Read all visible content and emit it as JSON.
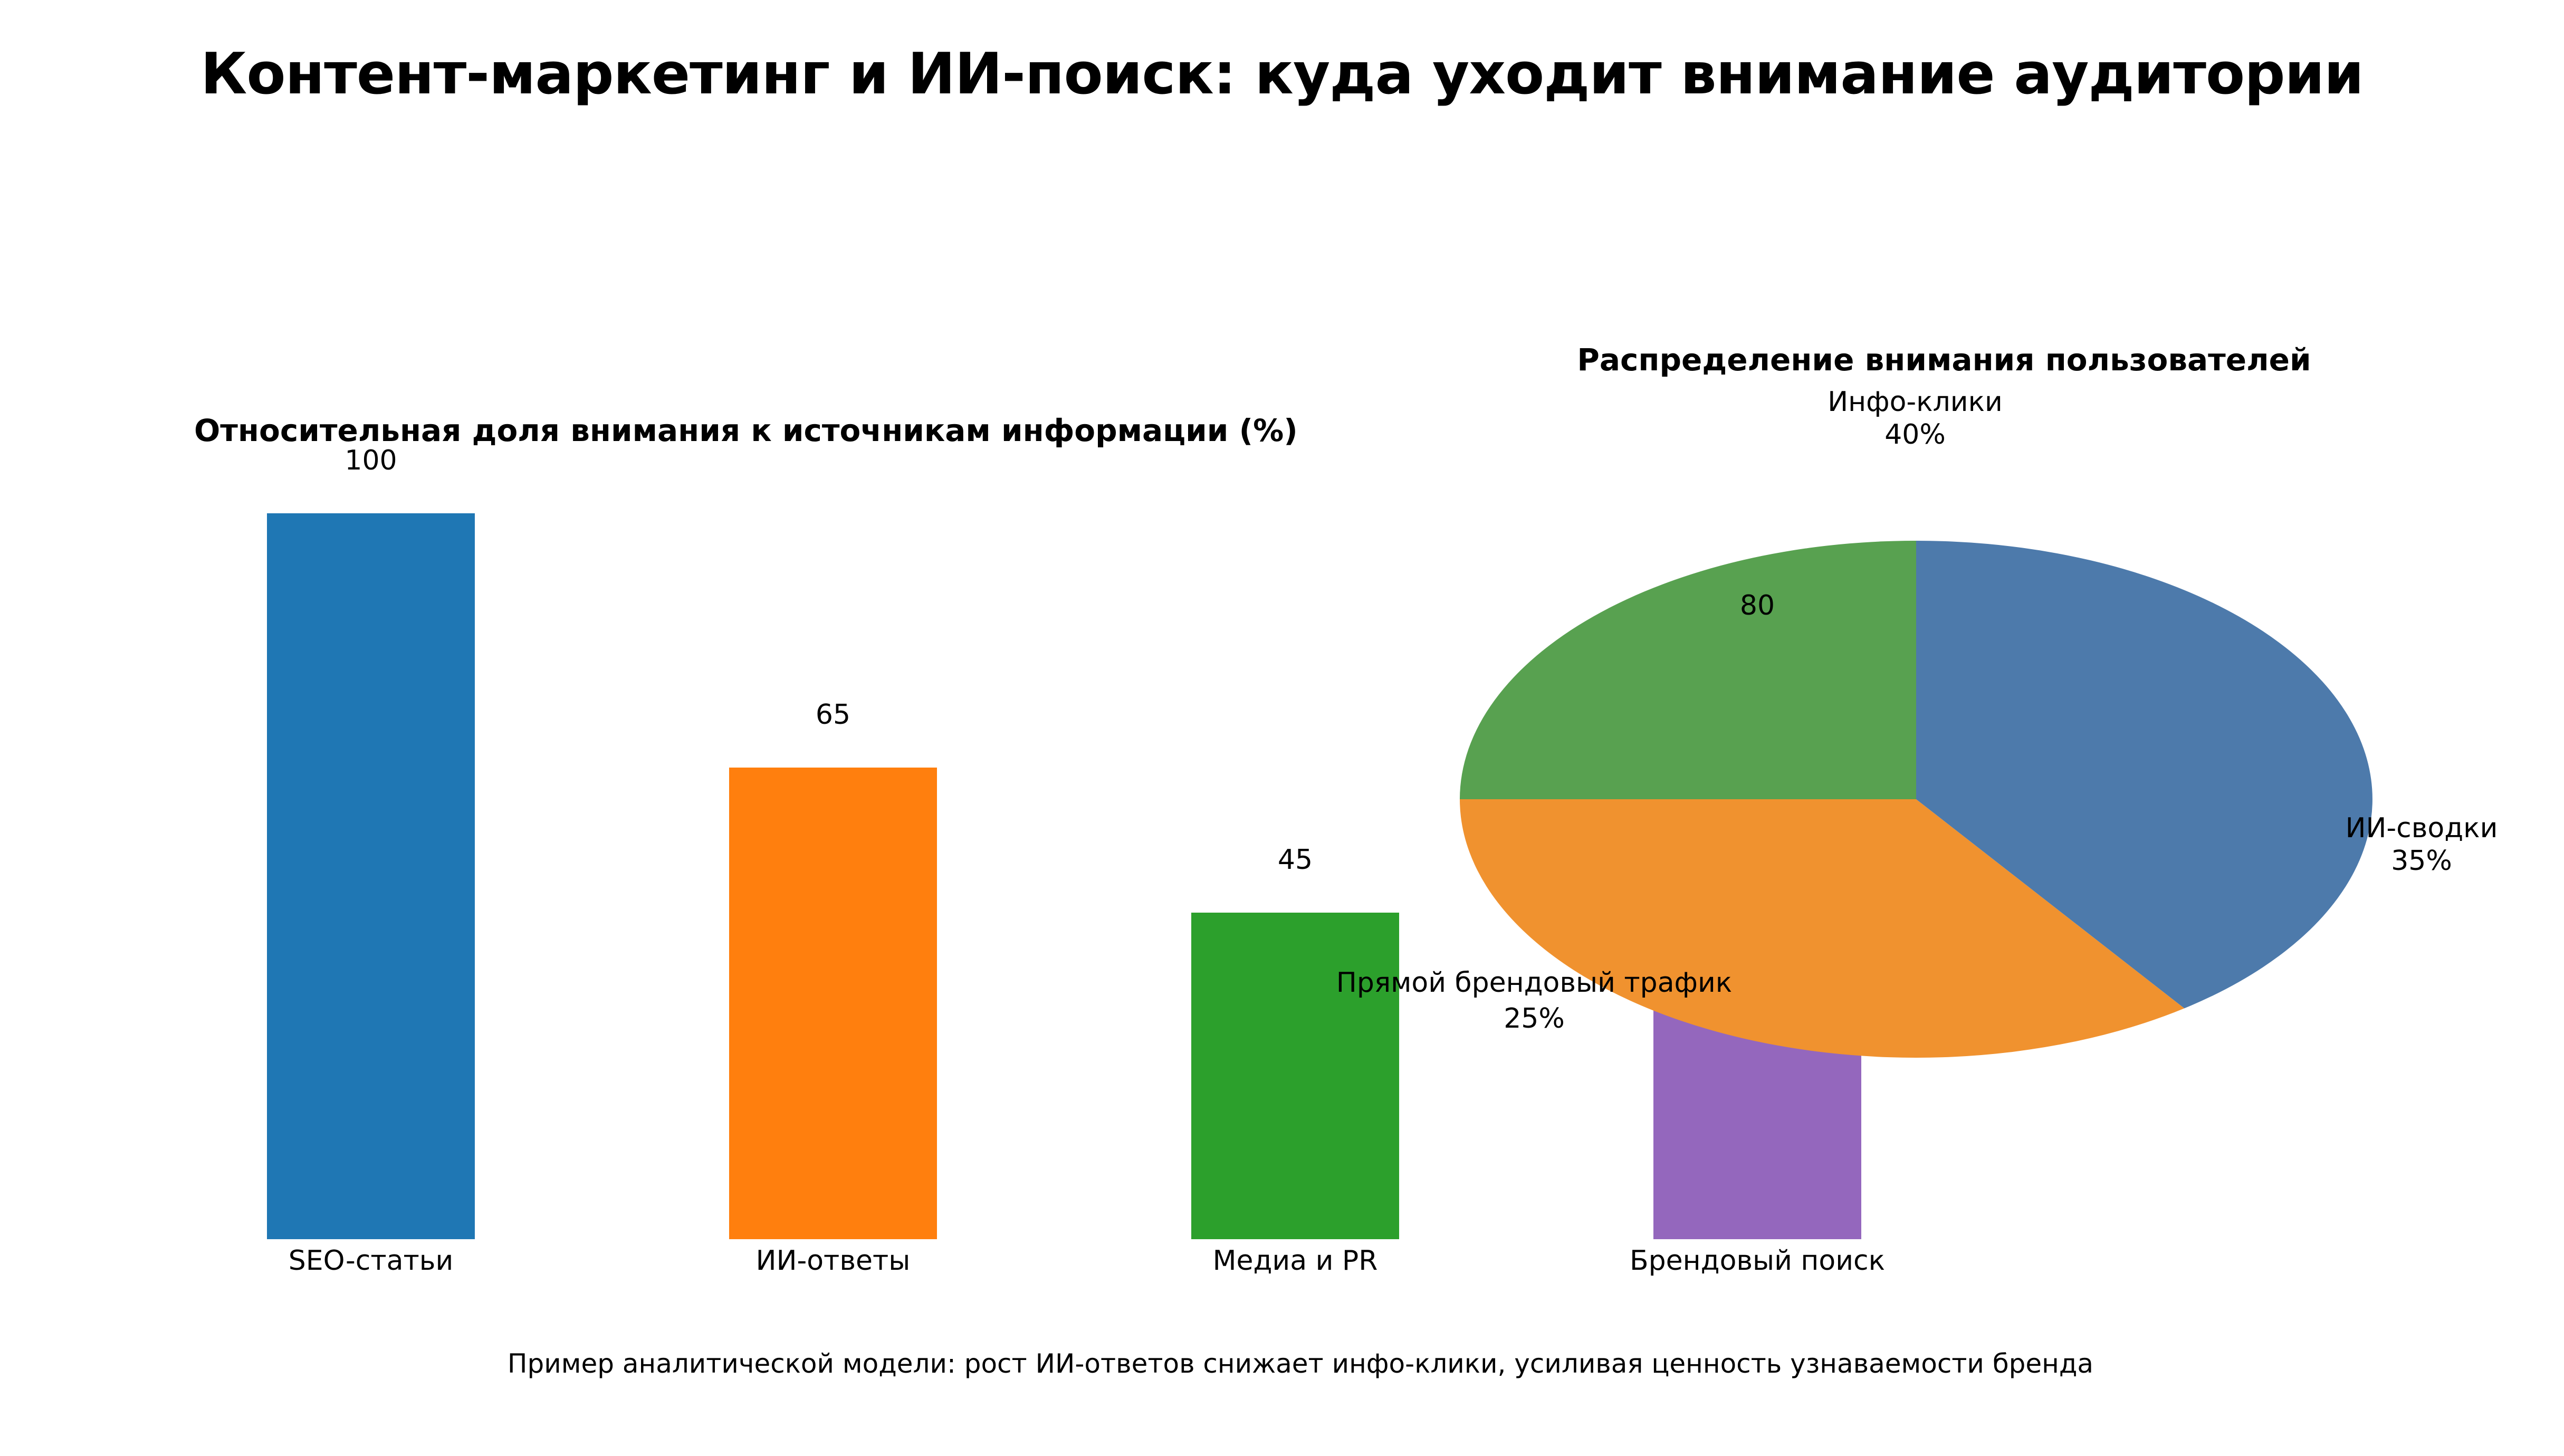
{
  "page": {
    "title": "Контент-маркетинг и ИИ-поиск: куда уходит внимание аудитории",
    "footnote": "Пример аналитической модели: рост ИИ-ответов снижает инфо-клики, усиливая ценность узнаваемости бренда",
    "background_color": "#ffffff",
    "text_color": "#000000"
  },
  "chart_data": [
    {
      "type": "bar",
      "title": "Относительная доля внимания к источникам информации (%)",
      "categories": [
        "SEO-статьи",
        "ИИ-ответы",
        "Медиа и PR",
        "Брендовый поиск"
      ],
      "values": [
        100,
        65,
        45,
        80
      ],
      "colors": [
        "#1f77b4",
        "#ff7f0e",
        "#2ca02c",
        "#9467bd"
      ],
      "ylim": [
        0,
        100
      ],
      "grid": false,
      "axis_lines": false,
      "value_labels_shown": true,
      "note": "четвёртый столбец частично перекрыт круговой диаграммой"
    },
    {
      "type": "pie",
      "title": "Распределение внимания пользователей",
      "slices": [
        {
          "label": "Инфо-клики",
          "pct": 40,
          "color": "#4d7aab"
        },
        {
          "label": "ИИ-сводки",
          "pct": 35,
          "color": "#f0922f"
        },
        {
          "label": "Прямой брендовый трафик",
          "pct": 25,
          "color": "#58a150"
        }
      ],
      "start_angle_deg": 90,
      "direction": "counterclockwise",
      "legend": "none",
      "labels_position": "outside-overlaid"
    }
  ]
}
